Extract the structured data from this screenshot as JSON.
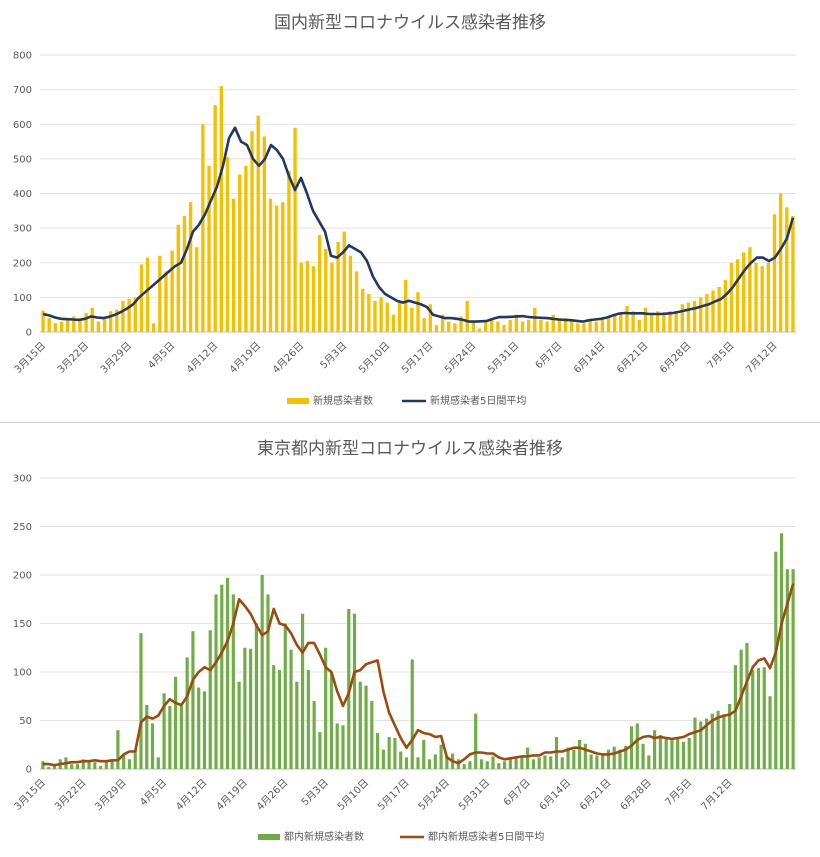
{
  "chart_data": [
    {
      "type": "bar",
      "title": "国内新型コロナウイルス感染者推移",
      "ylim": [
        0,
        800
      ],
      "yticks": [
        0,
        100,
        200,
        300,
        400,
        500,
        600,
        700,
        800
      ],
      "x_start": "3月15日",
      "x_tick_labels": [
        "3月15日",
        "3月22日",
        "3月29日",
        "4月5日",
        "4月12日",
        "4月19日",
        "4月26日",
        "5月3日",
        "5月10日",
        "5月17日",
        "5月24日",
        "5月31日",
        "6月7日",
        "6月14日",
        "6月21日",
        "6月28日",
        "7月5日",
        "7月12日"
      ],
      "grid": true,
      "legend_position": "bottom",
      "colors": {
        "bar": "#f5c000",
        "line": "#203864"
      },
      "series": [
        {
          "name": "新規感染者数",
          "kind": "bar",
          "values": [
            62,
            40,
            26,
            30,
            40,
            45,
            40,
            55,
            70,
            30,
            42,
            60,
            65,
            90,
            95,
            100,
            195,
            215,
            25,
            220,
            175,
            235,
            310,
            335,
            375,
            245,
            600,
            480,
            655,
            710,
            505,
            385,
            455,
            480,
            580,
            625,
            565,
            385,
            365,
            375,
            465,
            590,
            200,
            205,
            190,
            280,
            240,
            200,
            260,
            290,
            220,
            175,
            125,
            110,
            90,
            100,
            85,
            50,
            90,
            150,
            70,
            115,
            40,
            80,
            20,
            50,
            30,
            25,
            45,
            90,
            30,
            10,
            30,
            40,
            30,
            20,
            35,
            50,
            30,
            35,
            70,
            35,
            30,
            50,
            40,
            40,
            30,
            25,
            25,
            35,
            30,
            35,
            40,
            50,
            55,
            75,
            60,
            35,
            70,
            50,
            60,
            50,
            60,
            60,
            80,
            85,
            90,
            100,
            110,
            120,
            130,
            150,
            200,
            210,
            230,
            245,
            200,
            190,
            200,
            340,
            400,
            360,
            335
          ],
          "desc": "approximate daily values read from chart"
        },
        {
          "name": "新規感染者5日間平均",
          "kind": "line",
          "values": [
            52,
            48,
            42,
            38,
            37,
            36,
            35,
            38,
            45,
            42,
            40,
            44,
            50,
            58,
            68,
            80,
            100,
            115,
            130,
            145,
            160,
            175,
            190,
            200,
            240,
            290,
            310,
            340,
            380,
            420,
            480,
            560,
            590,
            550,
            540,
            500,
            480,
            500,
            540,
            525,
            500,
            450,
            410,
            445,
            400,
            350,
            320,
            290,
            220,
            215,
            230,
            250,
            240,
            230,
            205,
            160,
            130,
            110,
            100,
            90,
            85,
            90,
            85,
            80,
            72,
            50,
            45,
            40,
            40,
            38,
            35,
            30,
            30,
            31,
            32,
            38,
            43,
            43,
            44,
            45,
            46,
            43,
            42,
            41,
            40,
            38,
            36,
            35,
            34,
            32,
            30,
            34,
            36,
            38,
            42,
            48,
            53,
            55,
            54,
            54,
            54,
            52,
            52,
            52,
            53,
            55,
            58,
            62,
            66,
            70,
            75,
            80,
            88,
            95,
            110,
            130,
            155,
            180,
            200,
            215,
            215,
            205,
            215,
            240,
            270,
            330
          ],
          "desc": "approximate 5-day moving average"
        }
      ]
    },
    {
      "type": "bar",
      "title": "東京都内新型コロナウイルス感染者推移",
      "ylim": [
        0,
        300
      ],
      "yticks": [
        0,
        50,
        100,
        150,
        200,
        250,
        300
      ],
      "x_start": "3月15日",
      "x_tick_labels": [
        "3月15日",
        "3月22日",
        "3月29日",
        "4月5日",
        "4月12日",
        "4月19日",
        "4月26日",
        "5月3日",
        "5月10日",
        "5月17日",
        "5月24日",
        "5月31日",
        "6月7日",
        "6月14日",
        "6月21日",
        "6月28日",
        "7月5日",
        "7月12日"
      ],
      "grid": true,
      "legend_position": "bottom",
      "colors": {
        "bar": "#70ad47",
        "line": "#9c4a10"
      },
      "series": [
        {
          "name": "都内新規感染者数",
          "kind": "bar",
          "values": [
            8,
            2,
            5,
            10,
            12,
            5,
            5,
            10,
            8,
            7,
            3,
            8,
            10,
            40,
            15,
            10,
            20,
            140,
            66,
            47,
            12,
            78,
            65,
            95,
            65,
            115,
            142,
            84,
            80,
            143,
            180,
            190,
            197,
            180,
            90,
            125,
            124,
            150,
            200,
            180,
            107,
            102,
            150,
            123,
            90,
            160,
            102,
            70,
            38,
            125,
            100,
            47,
            45,
            165,
            160,
            90,
            86,
            70,
            37,
            20,
            33,
            32,
            18,
            12,
            113,
            12,
            30,
            10,
            15,
            25,
            14,
            16,
            10,
            5,
            8,
            57,
            10,
            8,
            13,
            6,
            8,
            10,
            12,
            14,
            22,
            10,
            12,
            14,
            13,
            33,
            12,
            22,
            20,
            30,
            26,
            15,
            14,
            16,
            20,
            23,
            20,
            24,
            44,
            47,
            26,
            14,
            40,
            35,
            31,
            32,
            33,
            28,
            32,
            53,
            49,
            52,
            57,
            60,
            56,
            67,
            107,
            123,
            130,
            102,
            104,
            105,
            75,
            224,
            243,
            206,
            206
          ],
          "desc": "approximate daily values read from chart"
        },
        {
          "name": "都内新規感染者5日間平均",
          "kind": "line",
          "values": [
            5,
            5,
            4,
            5,
            6,
            7,
            7,
            8,
            8,
            9,
            8,
            8,
            9,
            9,
            15,
            18,
            18,
            48,
            54,
            52,
            55,
            65,
            72,
            68,
            66,
            75,
            92,
            100,
            105,
            102,
            110,
            120,
            132,
            150,
            175,
            168,
            160,
            148,
            138,
            142,
            165,
            150,
            148,
            140,
            128,
            120,
            130,
            130,
            118,
            105,
            100,
            80,
            65,
            78,
            100,
            102,
            108,
            110,
            112,
            80,
            58,
            45,
            32,
            22,
            30,
            40,
            37,
            36,
            33,
            34,
            12,
            8,
            6,
            10,
            15,
            17,
            17,
            16,
            16,
            12,
            10,
            11,
            12,
            13,
            13,
            14,
            14,
            17,
            17,
            18,
            18,
            20,
            22,
            22,
            20,
            18,
            16,
            15,
            15,
            16,
            18,
            20,
            24,
            30,
            33,
            34,
            32,
            33,
            32,
            31,
            32,
            33,
            36,
            38,
            40,
            45,
            50,
            53,
            55,
            56,
            60,
            75,
            90,
            105,
            112,
            114,
            104,
            120,
            150,
            170,
            191
          ],
          "desc": "approximate 5-day moving average"
        }
      ]
    }
  ]
}
